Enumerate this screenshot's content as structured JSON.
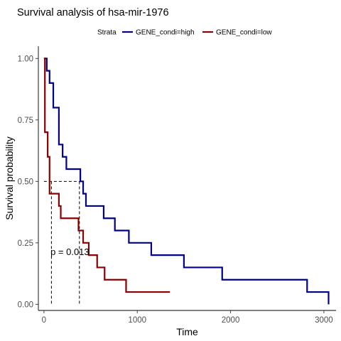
{
  "chart_data": {
    "type": "line",
    "title": "Survival analysis of hsa-mir-1976",
    "xlabel": "Time",
    "ylabel": "Survival probability",
    "xlim": [
      -60,
      3130
    ],
    "ylim": [
      -0.025,
      1.05
    ],
    "x_ticks": [
      0,
      1000,
      2000,
      3000
    ],
    "x_tick_labels": [
      "0",
      "1000",
      "2000",
      "3000"
    ],
    "y_ticks": [
      0,
      0.25,
      0.5,
      0.75,
      1.0
    ],
    "y_tick_labels": [
      "0.00",
      "0.25",
      "0.50",
      "0.75",
      "1.00"
    ],
    "grid": false,
    "legend": {
      "position": "top",
      "title": "Strata",
      "entries": [
        "GENE_condi=high",
        "GENE_condi=low"
      ]
    },
    "annotation": "p = 0.013",
    "annotation_pos": [
      70,
      0.2
    ],
    "median_lines": [
      {
        "series": "GENE_condi=low",
        "time": 80
      },
      {
        "series": "GENE_condi=high",
        "time": 380
      }
    ],
    "series": [
      {
        "name": "GENE_condi=high",
        "color": "#00008B",
        "steps": [
          [
            0,
            1.0
          ],
          [
            30,
            0.95
          ],
          [
            60,
            0.9
          ],
          [
            100,
            0.8
          ],
          [
            160,
            0.65
          ],
          [
            200,
            0.6
          ],
          [
            240,
            0.55
          ],
          [
            390,
            0.5
          ],
          [
            420,
            0.45
          ],
          [
            450,
            0.4
          ],
          [
            640,
            0.35
          ],
          [
            760,
            0.3
          ],
          [
            910,
            0.25
          ],
          [
            1150,
            0.2
          ],
          [
            1500,
            0.15
          ],
          [
            1910,
            0.1
          ],
          [
            2820,
            0.05
          ],
          [
            3050,
            0.0
          ]
        ]
      },
      {
        "name": "GENE_condi=low",
        "color": "#8B0000",
        "steps": [
          [
            0,
            1.0
          ],
          [
            10,
            0.7
          ],
          [
            40,
            0.6
          ],
          [
            60,
            0.45
          ],
          [
            160,
            0.4
          ],
          [
            180,
            0.35
          ],
          [
            370,
            0.3
          ],
          [
            420,
            0.25
          ],
          [
            480,
            0.2
          ],
          [
            570,
            0.15
          ],
          [
            650,
            0.1
          ],
          [
            880,
            0.05
          ],
          [
            1350,
            0.05
          ]
        ]
      }
    ]
  }
}
